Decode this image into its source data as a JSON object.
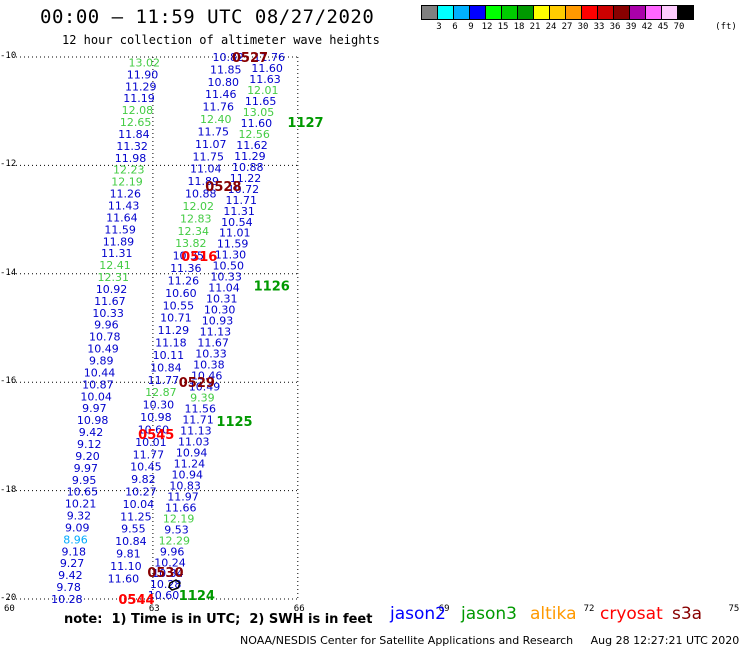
{
  "title": "00:00 – 11:59 UTC 08/27/2020",
  "subtitle": "12 hour collection of altimeter wave heights",
  "legend": {
    "colors": [
      "#808080",
      "#00ffff",
      "#00b0ff",
      "#0000ff",
      "#00ff00",
      "#00cc00",
      "#009900",
      "#ffff00",
      "#ffcc00",
      "#ff9900",
      "#ff0000",
      "#cc0000",
      "#880000",
      "#aa00aa",
      "#ff66ff",
      "#ffccff",
      "#000000"
    ],
    "labels": [
      "3",
      "6",
      "9",
      "12",
      "15",
      "18",
      "21",
      "24",
      "27",
      "30",
      "33",
      "36",
      "39",
      "42",
      "45",
      "70"
    ],
    "unit": "(ft)"
  },
  "lat_labels": [
    "-10",
    "-12",
    "-14",
    "-16",
    "-18",
    "-20"
  ],
  "lon_labels": [
    "60",
    "63",
    "66",
    "69",
    "72",
    "75"
  ],
  "note": "note:  1) Time is in UTC;  2) SWH is in feet",
  "satellites": [
    {
      "name": "jason2",
      "color": "#0000ff"
    },
    {
      "name": "jason3",
      "color": "#009900"
    },
    {
      "name": "altika",
      "color": "#ff9900"
    },
    {
      "name": "cryosat",
      "color": "#ff0000"
    },
    {
      "name": "s3a",
      "color": "#880000"
    }
  ],
  "footer": "NOAA/NESDIS Center for Satellite Applications and Research     Aug 28 12:27:21 UTC 2020",
  "time_labels": [
    {
      "text": "0527",
      "color": "#880000",
      "lon": 64.43,
      "lat": -10.0
    },
    {
      "text": "0528",
      "color": "#880000",
      "lon": 63.88,
      "lat": -12.38
    },
    {
      "text": "0529",
      "color": "#880000",
      "lon": 63.33,
      "lat": -16.0
    },
    {
      "text": "0530",
      "color": "#880000",
      "lon": 62.68,
      "lat": -19.5
    },
    {
      "text": "0516",
      "color": "#ff0000",
      "lon": 63.38,
      "lat": -13.67
    },
    {
      "text": "0545",
      "color": "#ff0000",
      "lon": 62.49,
      "lat": -16.96
    },
    {
      "text": "0544",
      "color": "#ff0000",
      "lon": 62.08,
      "lat": -20.0
    },
    {
      "text": "1127",
      "color": "#009900",
      "lon": 65.58,
      "lat": -11.2
    },
    {
      "text": "1126",
      "color": "#009900",
      "lon": 64.88,
      "lat": -14.22
    },
    {
      "text": "1125",
      "color": "#009900",
      "lon": 64.11,
      "lat": -16.72
    },
    {
      "text": "1124",
      "color": "#009900",
      "lon": 63.33,
      "lat": -19.93
    }
  ],
  "tracks": [
    {
      "name": "s3a pass 0527-0530",
      "start": [
        64.56,
        -10.0
      ],
      "end": [
        62.39,
        -19.62
      ],
      "values": [
        "10.82",
        "11.85",
        "10.80",
        "11.46",
        "11.76",
        "12.40",
        "11.75",
        "11.07",
        "11.75",
        "11.04",
        "11.89",
        "10.88",
        "12.02",
        "12.83",
        "12.34",
        "13.82",
        "10.35",
        "11.36",
        "11.26",
        "10.60",
        "10.55",
        "10.71",
        "11.29",
        "11.18",
        "10.11",
        "10.84",
        "11.77",
        "12.87",
        "10.30",
        "10.98",
        "10.60",
        "10.01",
        "11.77",
        "10.45",
        "9.82",
        "10.27",
        "10.04",
        "11.25",
        "9.55",
        "10.84",
        "9.81",
        "11.10",
        "11.60"
      ],
      "colors": [
        "b",
        "b",
        "b",
        "b",
        "b",
        "g",
        "b",
        "b",
        "b",
        "b",
        "b",
        "b",
        "g",
        "g",
        "g",
        "g",
        "b",
        "b",
        "b",
        "b",
        "b",
        "b",
        "b",
        "b",
        "b",
        "b",
        "b",
        "g",
        "b",
        "b",
        "b",
        "b",
        "b",
        "b",
        "b",
        "b",
        "b",
        "b",
        "b",
        "b",
        "b",
        "b",
        "b"
      ]
    },
    {
      "name": "jason3 pass 1127-1124",
      "start": [
        65.41,
        -10.0
      ],
      "end": [
        63.22,
        -19.93
      ],
      "values": [
        "11.76",
        "11.60",
        "11.63",
        "12.01",
        "11.65",
        "13.05",
        "11.60",
        "12.56",
        "11.62",
        "11.29",
        "10.88",
        "11.22",
        "10.72",
        "11.71",
        "11.31",
        "10.54",
        "11.01",
        "11.59",
        "11.30",
        "10.50",
        "10.33",
        "11.04",
        "10.31",
        "10.30",
        "10.93",
        "11.13",
        "11.67",
        "10.33",
        "10.38",
        "10.46",
        "10.49",
        "9.39",
        "11.56",
        "11.71",
        "11.13",
        "11.03",
        "10.94",
        "11.24",
        "10.94",
        "10.83",
        "11.97",
        "11.66",
        "12.19",
        "9.53",
        "12.29",
        "9.96",
        "10.24",
        "10.34",
        "10.28",
        "10.60"
      ],
      "colors": [
        "b",
        "b",
        "b",
        "g",
        "b",
        "g",
        "b",
        "g",
        "b",
        "b",
        "b",
        "b",
        "b",
        "b",
        "b",
        "b",
        "b",
        "b",
        "b",
        "b",
        "b",
        "b",
        "b",
        "b",
        "b",
        "b",
        "b",
        "b",
        "b",
        "b",
        "b",
        "g",
        "b",
        "b",
        "b",
        "b",
        "b",
        "b",
        "b",
        "b",
        "b",
        "b",
        "g",
        "b",
        "g",
        "b",
        "b",
        "b",
        "b",
        "b"
      ]
    },
    {
      "name": "jason3 pass 1125-1124 west",
      "start": [
        62.82,
        -10.1
      ],
      "end": [
        61.22,
        -20.0
      ],
      "values": [
        "13.02",
        "11.90",
        "11.29",
        "11.19",
        "12.08",
        "12.65",
        "11.84",
        "11.32",
        "11.98",
        "12.23",
        "12.19",
        "11.26",
        "11.43",
        "11.64",
        "11.59",
        "11.89",
        "11.31",
        "12.41",
        "12.31",
        "10.92",
        "11.67",
        "10.33",
        "9.96",
        "10.78",
        "10.49",
        "9.89",
        "10.44",
        "10.87",
        "10.04",
        "9.97",
        "10.98",
        "9.42",
        "9.12",
        "9.20",
        "9.97",
        "9.95",
        "10.65",
        "10.21",
        "9.32",
        "9.09",
        "8.96",
        "9.18",
        "9.27",
        "9.42",
        "9.78",
        "10.28"
      ],
      "colors": [
        "g",
        "b",
        "b",
        "b",
        "g",
        "g",
        "b",
        "b",
        "b",
        "g",
        "g",
        "b",
        "b",
        "b",
        "b",
        "b",
        "b",
        "g",
        "g",
        "b",
        "b",
        "b",
        "b",
        "b",
        "b",
        "b",
        "b",
        "b",
        "b",
        "b",
        "b",
        "b",
        "b",
        "b",
        "b",
        "b",
        "b",
        "b",
        "b",
        "b",
        "c",
        "b",
        "b",
        "b",
        "b",
        "b"
      ]
    }
  ]
}
